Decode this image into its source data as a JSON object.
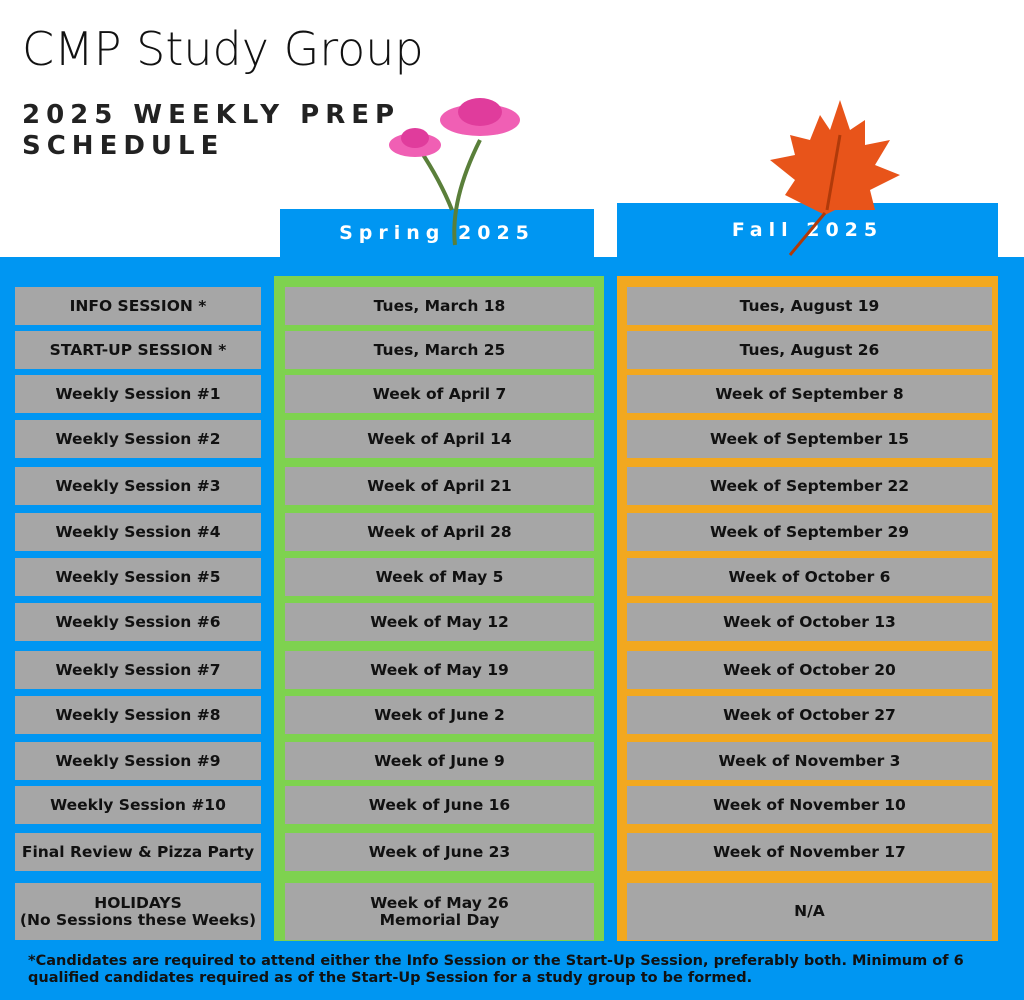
{
  "header": {
    "title": "CMP Study Group",
    "subtitle_lines": [
      "2025 WEEKLY PREP",
      "SCHEDULE"
    ]
  },
  "columns": {
    "spring": "Spring 2025",
    "fall": "Fall 2025"
  },
  "rows": [
    {
      "label": [
        "INFO SESSION *"
      ],
      "spring": [
        "Tues, March 18"
      ],
      "fall": [
        "Tues, August 19"
      ]
    },
    {
      "label": [
        "START-UP SESSION *"
      ],
      "spring": [
        "Tues, March 25"
      ],
      "fall": [
        "Tues, August 26"
      ]
    },
    {
      "label": [
        "Weekly Session #1"
      ],
      "spring": [
        "Week of April 7"
      ],
      "fall": [
        "Week of September 8"
      ]
    },
    {
      "label": [
        "Weekly Session #2"
      ],
      "spring": [
        "Week of April 14"
      ],
      "fall": [
        "Week of September 15"
      ]
    },
    {
      "label": [
        "Weekly Session #3"
      ],
      "spring": [
        "Week of April 21"
      ],
      "fall": [
        "Week of September 22"
      ]
    },
    {
      "label": [
        "Weekly Session #4"
      ],
      "spring": [
        "Week of April 28"
      ],
      "fall": [
        "Week of September 29"
      ]
    },
    {
      "label": [
        "Weekly Session #5"
      ],
      "spring": [
        "Week of May 5"
      ],
      "fall": [
        "Week of October 6"
      ]
    },
    {
      "label": [
        "Weekly Session #6"
      ],
      "spring": [
        "Week of May 12"
      ],
      "fall": [
        "Week of October 13"
      ]
    },
    {
      "label": [
        "Weekly Session #7"
      ],
      "spring": [
        "Week of May 19"
      ],
      "fall": [
        "Week of October 20"
      ]
    },
    {
      "label": [
        "Weekly Session #8"
      ],
      "spring": [
        "Week of June 2"
      ],
      "fall": [
        "Week of October 27"
      ]
    },
    {
      "label": [
        "Weekly Session #9"
      ],
      "spring": [
        "Week of June 9"
      ],
      "fall": [
        "Week of November 3"
      ]
    },
    {
      "label": [
        "Weekly Session #10"
      ],
      "spring": [
        "Week of June 16"
      ],
      "fall": [
        "Week of November 10"
      ]
    },
    {
      "label": [
        "Final Review & Pizza Party"
      ],
      "spring": [
        "Week of June 23"
      ],
      "fall": [
        "Week of November 17"
      ]
    },
    {
      "label": [
        "HOLIDAYS",
        "(No Sessions these Weeks)"
      ],
      "spring": [
        "Week of May 26",
        "Memorial Day"
      ],
      "fall": [
        "N/A"
      ]
    }
  ],
  "footnote": "*Candidates are required to attend either the Info Session or the Start-Up Session, preferably both. Minimum of 6 qualified candidates required as of the Start-Up Session for a study group to be formed."
}
